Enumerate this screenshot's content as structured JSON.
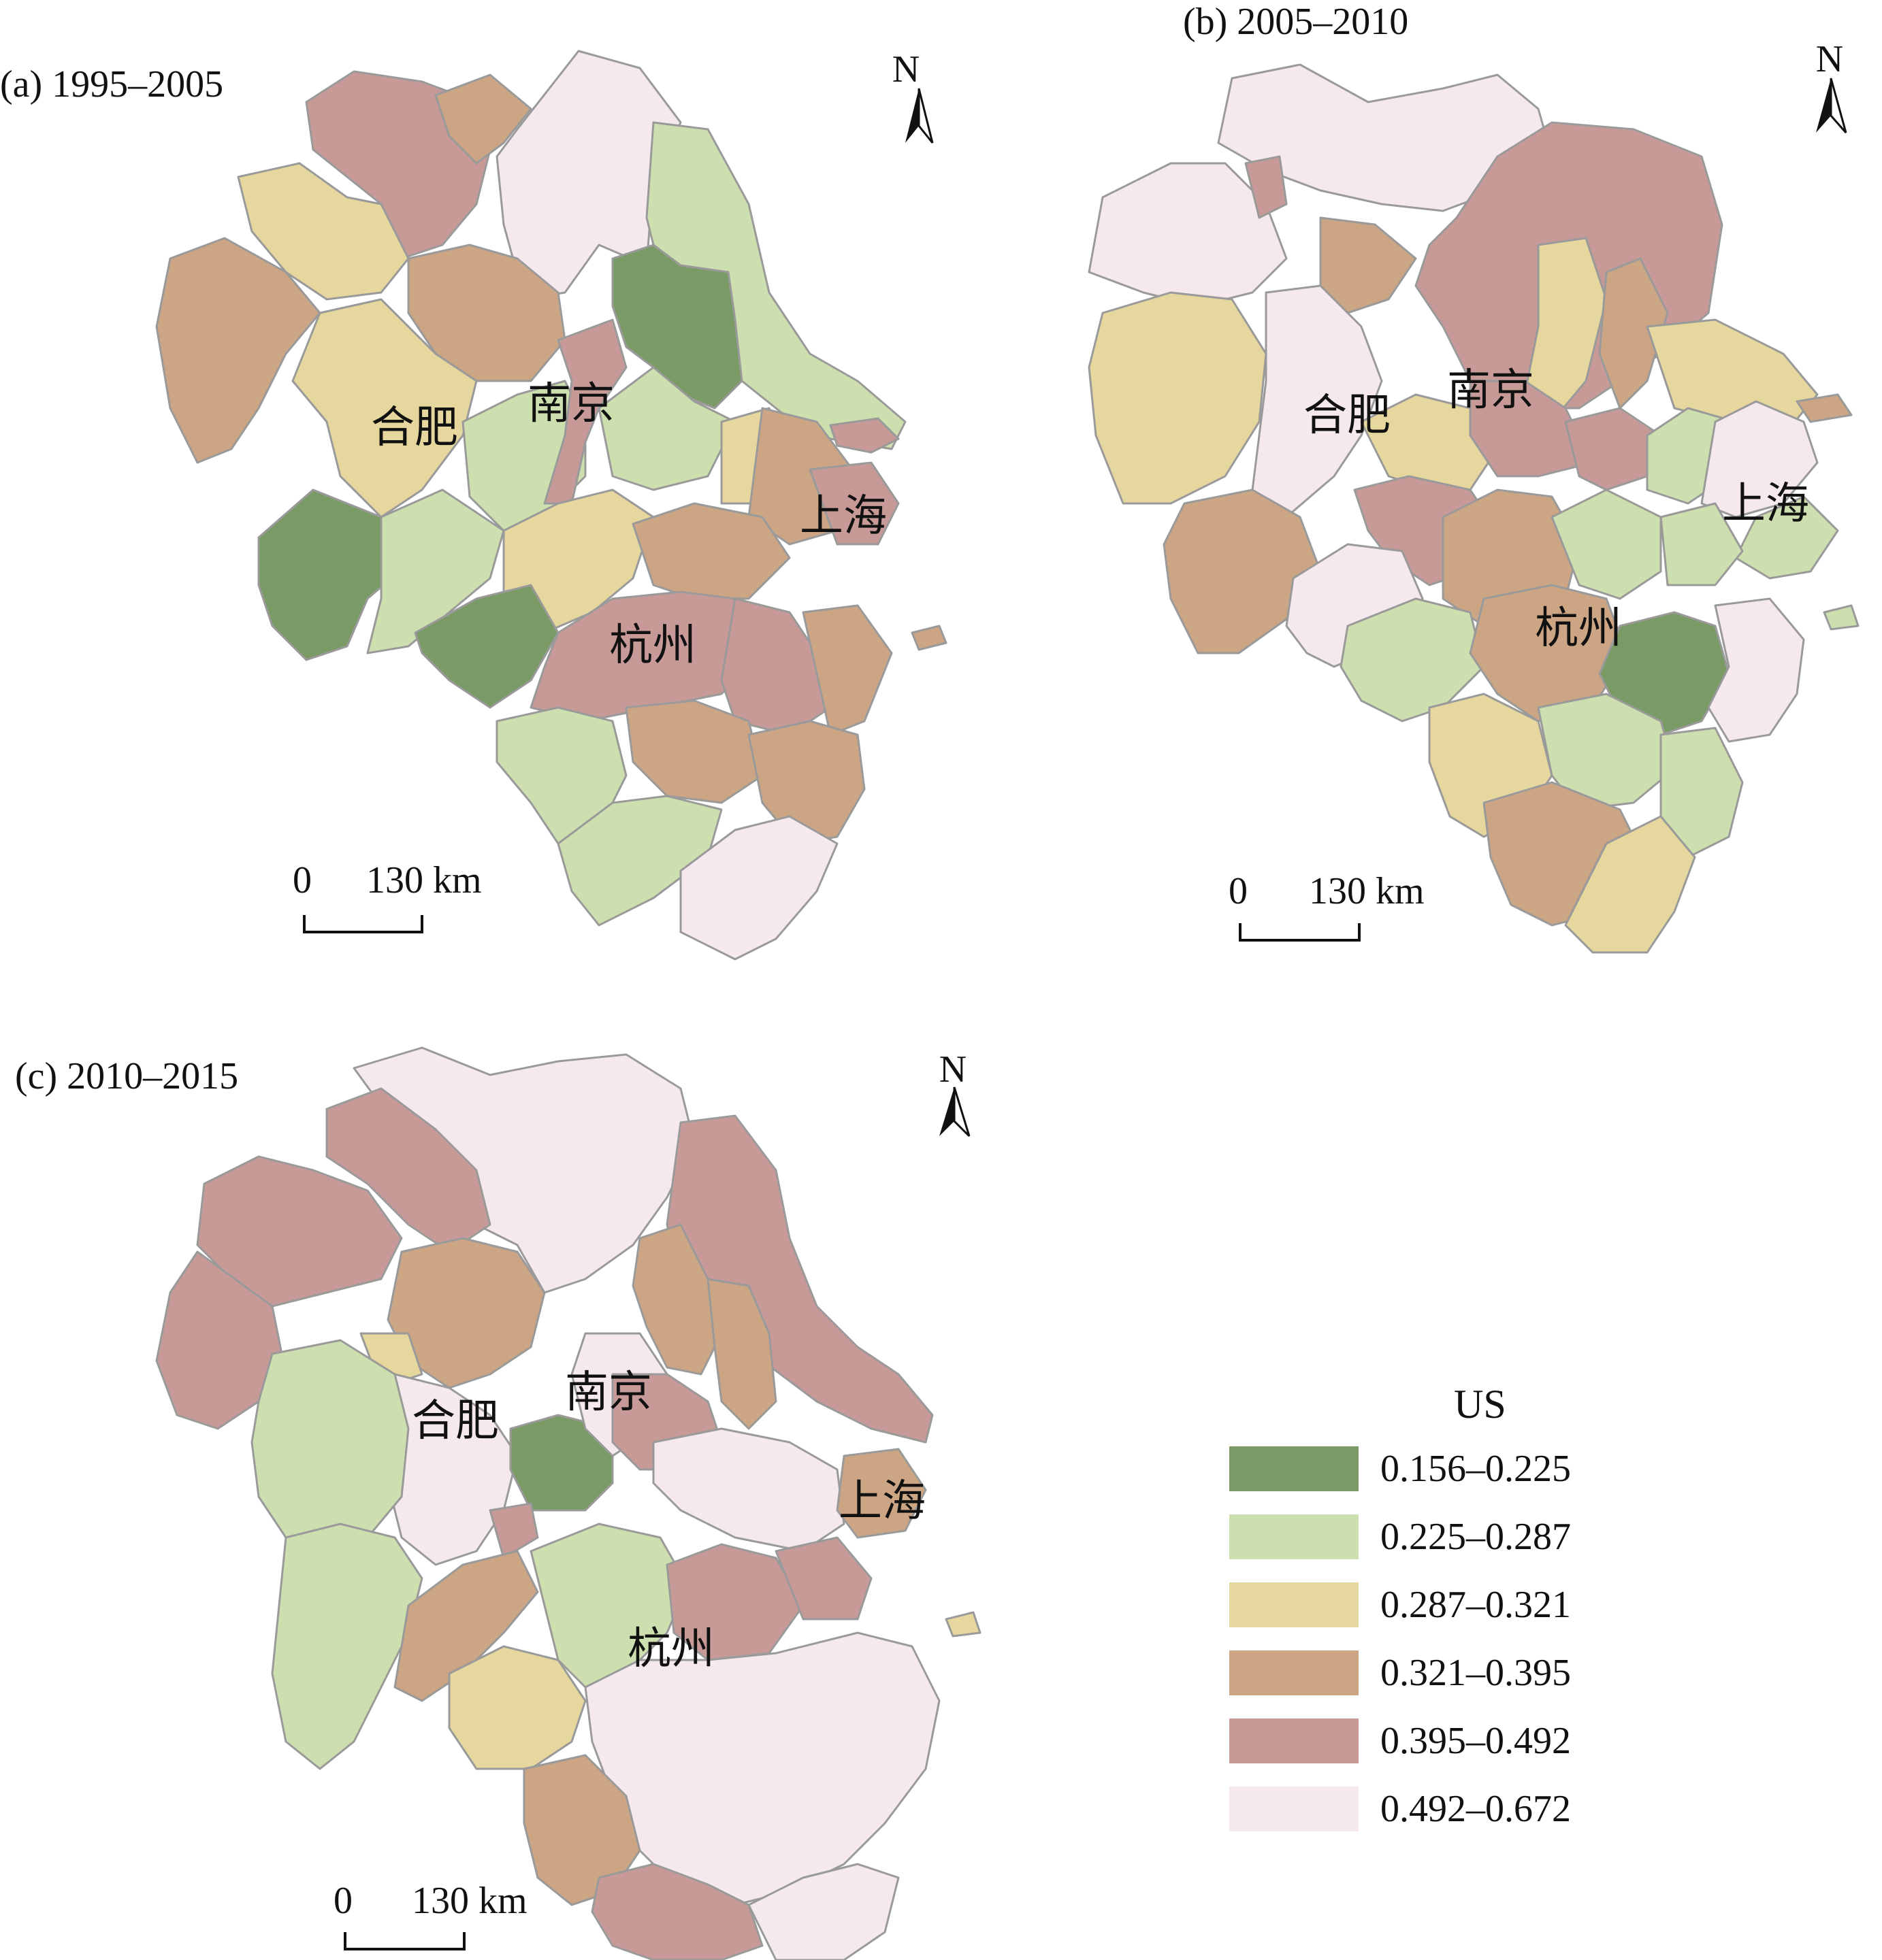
{
  "legend": {
    "title": "US",
    "classes": [
      {
        "label": "0.156–0.225",
        "color": "#7a9a66"
      },
      {
        "label": "0.225–0.287",
        "color": "#cddfae"
      },
      {
        "label": "0.287–0.321",
        "color": "#e6d79e"
      },
      {
        "label": "0.321–0.395",
        "color": "#cca584"
      },
      {
        "label": "0.395–0.492",
        "color": "#c79a98"
      },
      {
        "label": "0.492–0.672",
        "color": "#f6e9ee"
      }
    ]
  },
  "panels": [
    {
      "title": "(a) 1995–2005",
      "north": "N",
      "scale": {
        "zero": "0",
        "distance": "130 km"
      },
      "cities": [
        {
          "name": "合肥",
          "label": "合肥"
        },
        {
          "name": "南京",
          "label": "南京"
        },
        {
          "name": "上海",
          "label": "上海"
        },
        {
          "name": "杭州",
          "label": "杭州"
        }
      ]
    },
    {
      "title": "(b) 2005–2010",
      "north": "N",
      "scale": {
        "zero": "0",
        "distance": "130 km"
      },
      "cities": [
        {
          "name": "合肥",
          "label": "合肥"
        },
        {
          "name": "南京",
          "label": "南京"
        },
        {
          "name": "上海",
          "label": "上海"
        },
        {
          "name": "杭州",
          "label": "杭州"
        }
      ]
    },
    {
      "title": "(c) 2010–2015",
      "north": "N",
      "scale": {
        "zero": "0",
        "distance": "130 km"
      },
      "cities": [
        {
          "name": "合肥",
          "label": "合肥"
        },
        {
          "name": "南京",
          "label": "南京"
        },
        {
          "name": "上海",
          "label": "上海"
        },
        {
          "name": "杭州",
          "label": "杭州"
        }
      ]
    }
  ]
}
